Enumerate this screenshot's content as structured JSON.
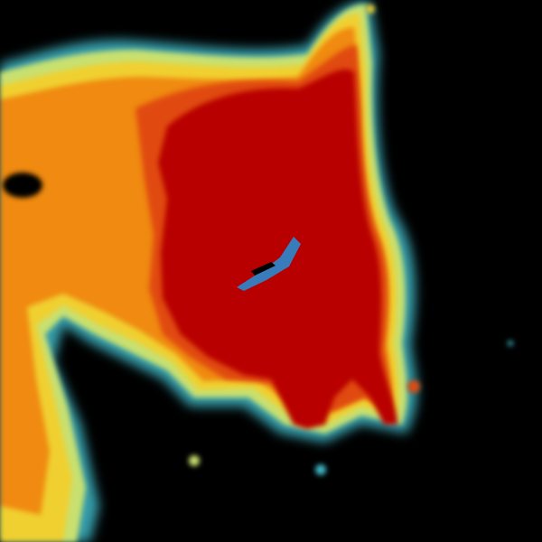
{
  "image": {
    "kind": "weather radar reflectivity sweep",
    "background": "#000000",
    "palette": {
      "low": "#3fb8c8",
      "light": "#c8e070",
      "moderate": "#f0d030",
      "heavy": "#f08a10",
      "intense": "#e04a10",
      "extreme": "#b80000",
      "center_noise": "#2a8ad0"
    }
  }
}
